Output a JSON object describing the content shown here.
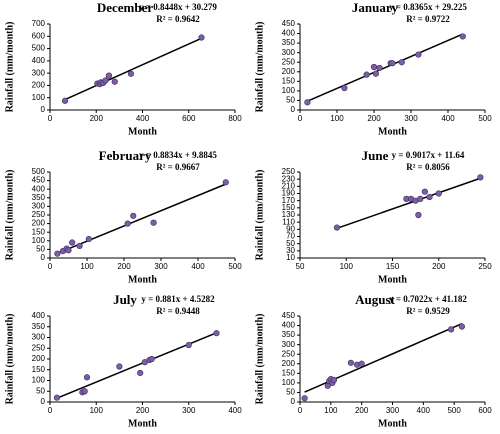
{
  "chart_data": [
    {
      "type": "scatter",
      "title": "December",
      "x_label": "Month",
      "y_label": "Rainfall (mm/month)",
      "trendline": {
        "equation": "y = 0.8448x + 30.279",
        "r2": "R² = 0.9642",
        "slope": 0.8448,
        "intercept": 30.279
      },
      "color": "#7b5ea7",
      "x": [
        65,
        205,
        215,
        220,
        230,
        240,
        255,
        280,
        350,
        655
      ],
      "values": [
        75,
        215,
        210,
        225,
        220,
        240,
        280,
        230,
        295,
        590
      ],
      "xlim": [
        0,
        800
      ],
      "xticks": [
        0,
        200,
        400,
        600,
        800
      ],
      "ylim": [
        0,
        700
      ],
      "yticks": [
        0,
        100,
        200,
        300,
        400,
        500,
        600,
        700
      ]
    },
    {
      "type": "scatter",
      "title": "January",
      "x_label": "Month",
      "y_label": "Rainfall (mm/month)",
      "trendline": {
        "equation": "y = 0.8365x + 29.225",
        "r2": "R² = 0.9722",
        "slope": 0.8365,
        "intercept": 29.225
      },
      "color": "#7b5ea7",
      "x": [
        20,
        120,
        180,
        200,
        205,
        215,
        245,
        250,
        275,
        320,
        440
      ],
      "values": [
        40,
        115,
        185,
        225,
        190,
        220,
        245,
        245,
        250,
        290,
        385
      ],
      "xlim": [
        0,
        500
      ],
      "xticks": [
        0,
        100,
        200,
        300,
        400,
        500
      ],
      "ylim": [
        0,
        450
      ],
      "yticks": [
        0,
        50,
        100,
        150,
        200,
        250,
        300,
        350,
        400,
        450
      ]
    },
    {
      "type": "scatter",
      "title": "February",
      "x_label": "Month",
      "y_label": "Rainfall (mm/month)",
      "trendline": {
        "equation": "y = 0.8834x + 9.8845",
        "r2": "R² = 0.9667",
        "slope": 0.8834,
        "intercept": 9.8845
      },
      "color": "#7b5ea7",
      "x": [
        20,
        35,
        45,
        50,
        60,
        80,
        105,
        210,
        225,
        280,
        475
      ],
      "values": [
        25,
        40,
        55,
        45,
        90,
        70,
        110,
        200,
        245,
        205,
        440
      ],
      "xlim": [
        0,
        500
      ],
      "xticks": [
        0,
        100,
        200,
        300,
        400,
        500
      ],
      "ylim": [
        0,
        500
      ],
      "yticks": [
        0,
        50,
        100,
        150,
        200,
        250,
        300,
        350,
        400,
        450,
        500
      ]
    },
    {
      "type": "scatter",
      "title": "June",
      "x_label": "Month",
      "y_label": "Rainfall (mm/month)",
      "trendline": {
        "equation": "y = 0.9017x + 11.64",
        "r2": "R² = 0.8056",
        "slope": 0.9017,
        "intercept": 11.64
      },
      "color": "#7b5ea7",
      "x": [
        90,
        165,
        170,
        175,
        178,
        180,
        185,
        190,
        200,
        245
      ],
      "values": [
        95,
        175,
        175,
        170,
        130,
        175,
        195,
        180,
        190,
        235
      ],
      "xlim": [
        50,
        250
      ],
      "xticks": [
        50,
        100,
        150,
        200,
        250
      ],
      "ylim": [
        10,
        250
      ],
      "yticks": [
        10,
        30,
        50,
        70,
        90,
        110,
        130,
        150,
        170,
        190,
        210,
        230,
        250
      ]
    },
    {
      "type": "scatter",
      "title": "July",
      "x_label": "Month",
      "y_label": "Rainfall (mm/month)",
      "trendline": {
        "equation": "y = 0.881x + 4.5282",
        "r2": "R² = 0.9448",
        "slope": 0.881,
        "intercept": 4.5282
      },
      "color": "#7b5ea7",
      "x": [
        15,
        70,
        75,
        80,
        150,
        195,
        205,
        215,
        220,
        300,
        360
      ],
      "values": [
        20,
        45,
        50,
        115,
        165,
        135,
        185,
        195,
        200,
        265,
        320
      ],
      "xlim": [
        0,
        400
      ],
      "xticks": [
        0,
        100,
        200,
        300,
        400
      ],
      "ylim": [
        0,
        400
      ],
      "yticks": [
        0,
        50,
        100,
        150,
        200,
        250,
        300,
        350,
        400
      ]
    },
    {
      "type": "scatter",
      "title": "August",
      "x_label": "Month",
      "y_label": "Rainfall (mm/month)",
      "trendline": {
        "equation": "y = 0.7022x + 41.182",
        "r2": "R² = 0.9529",
        "slope": 0.7022,
        "intercept": 41.182
      },
      "color": "#7b5ea7",
      "x": [
        15,
        90,
        95,
        100,
        105,
        110,
        165,
        185,
        200,
        490,
        525
      ],
      "values": [
        20,
        85,
        110,
        120,
        100,
        115,
        205,
        195,
        200,
        380,
        395
      ],
      "xlim": [
        0,
        600
      ],
      "xticks": [
        0,
        100,
        200,
        300,
        400,
        500,
        600
      ],
      "ylim": [
        0,
        450
      ],
      "yticks": [
        0,
        50,
        100,
        150,
        200,
        250,
        300,
        350,
        400,
        450
      ]
    }
  ]
}
